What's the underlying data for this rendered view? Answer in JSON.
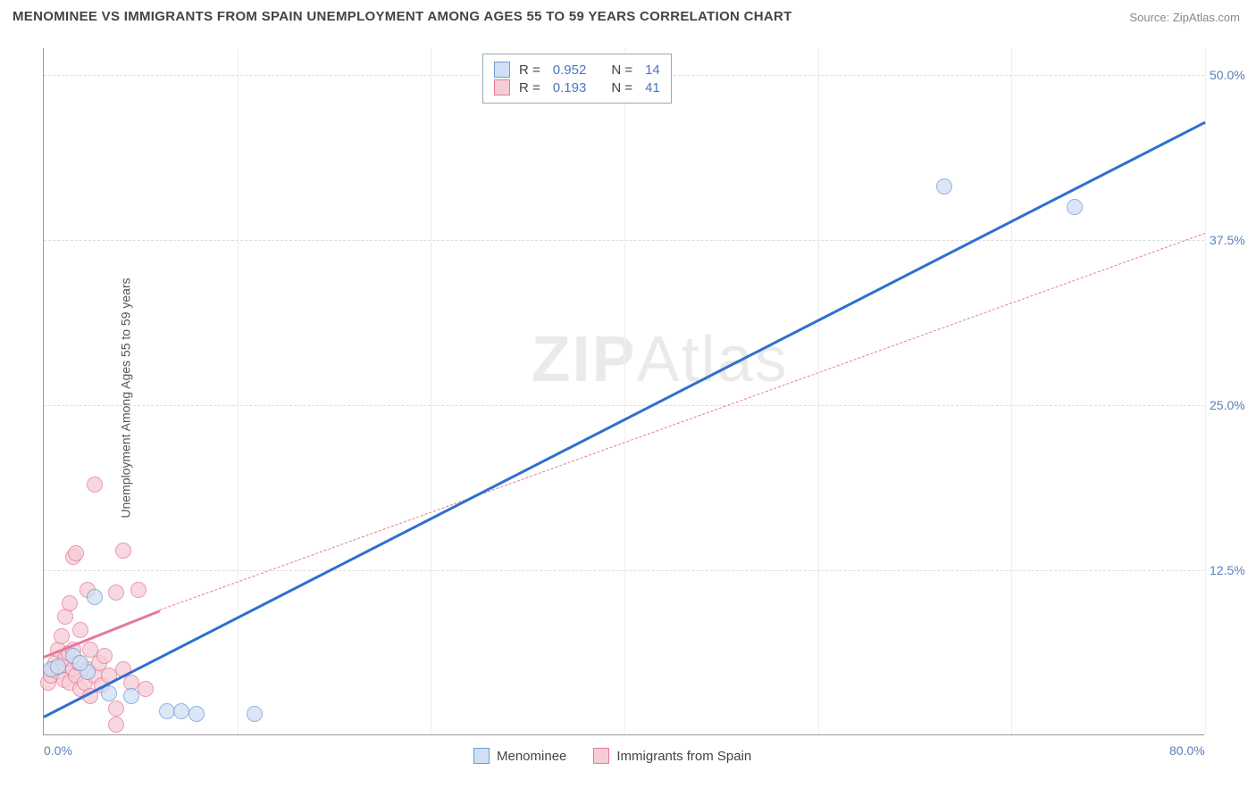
{
  "title": "MENOMINEE VS IMMIGRANTS FROM SPAIN UNEMPLOYMENT AMONG AGES 55 TO 59 YEARS CORRELATION CHART",
  "source_prefix": "Source: ",
  "source_name": "ZipAtlas.com",
  "ylabel": "Unemployment Among Ages 55 to 59 years",
  "watermark_a": "ZIP",
  "watermark_b": "Atlas",
  "chart": {
    "type": "scatter",
    "xlim": [
      0,
      80
    ],
    "ylim": [
      0,
      52
    ],
    "background_color": "#ffffff",
    "grid_color": "#dddddd",
    "x_ticks": [
      {
        "value": 0,
        "label": "0.0%"
      },
      {
        "value": 80,
        "label": "80.0%"
      }
    ],
    "x_gridlines": [
      13.33,
      26.67,
      40,
      53.33,
      66.67,
      80
    ],
    "y_ticks": [
      {
        "value": 12.5,
        "label": "12.5%"
      },
      {
        "value": 25.0,
        "label": "25.0%"
      },
      {
        "value": 37.5,
        "label": "37.5%"
      },
      {
        "value": 50.0,
        "label": "50.0%"
      }
    ],
    "series": [
      {
        "id": "menominee",
        "label": "Menominee",
        "marker_fill": "#cfe0f5",
        "marker_stroke": "#6f9bd8",
        "marker_radius": 9,
        "marker_opacity": 0.75,
        "trend_color": "#2f6fd0",
        "trend_width": 3,
        "trend_solid": {
          "x1": 0,
          "y1": 1.5,
          "x2": 80,
          "y2": 46.5
        },
        "points": [
          {
            "x": 0.5,
            "y": 5.0
          },
          {
            "x": 1.0,
            "y": 5.2
          },
          {
            "x": 2.0,
            "y": 6.0
          },
          {
            "x": 3.0,
            "y": 4.8
          },
          {
            "x": 3.5,
            "y": 10.5
          },
          {
            "x": 4.5,
            "y": 3.2
          },
          {
            "x": 6.0,
            "y": 3.0
          },
          {
            "x": 8.5,
            "y": 1.8
          },
          {
            "x": 9.5,
            "y": 1.8
          },
          {
            "x": 10.5,
            "y": 1.6
          },
          {
            "x": 14.5,
            "y": 1.6
          },
          {
            "x": 62.0,
            "y": 41.5
          },
          {
            "x": 71.0,
            "y": 40.0
          },
          {
            "x": 2.5,
            "y": 5.5
          }
        ]
      },
      {
        "id": "spain",
        "label": "Immigrants from Spain",
        "marker_fill": "#f6ccd6",
        "marker_stroke": "#e47a95",
        "marker_radius": 9,
        "marker_opacity": 0.75,
        "trend_color": "#e47a95",
        "trend_width": 3,
        "trend_solid": {
          "x1": 0,
          "y1": 6.0,
          "x2": 8,
          "y2": 9.5
        },
        "trend_dashed": {
          "x1": 8,
          "y1": 9.5,
          "x2": 80,
          "y2": 38.0
        },
        "points": [
          {
            "x": 0.3,
            "y": 4.0
          },
          {
            "x": 0.5,
            "y": 4.5
          },
          {
            "x": 0.6,
            "y": 5.0
          },
          {
            "x": 0.8,
            "y": 5.5
          },
          {
            "x": 1.0,
            "y": 4.8
          },
          {
            "x": 1.0,
            "y": 6.5
          },
          {
            "x": 1.2,
            "y": 5.3
          },
          {
            "x": 1.2,
            "y": 7.5
          },
          {
            "x": 1.4,
            "y": 4.2
          },
          {
            "x": 1.5,
            "y": 5.8
          },
          {
            "x": 1.5,
            "y": 9.0
          },
          {
            "x": 1.7,
            "y": 6.2
          },
          {
            "x": 1.8,
            "y": 4.0
          },
          {
            "x": 1.8,
            "y": 10.0
          },
          {
            "x": 2.0,
            "y": 5.0
          },
          {
            "x": 2.0,
            "y": 6.5
          },
          {
            "x": 2.0,
            "y": 13.5
          },
          {
            "x": 2.2,
            "y": 4.5
          },
          {
            "x": 2.2,
            "y": 13.8
          },
          {
            "x": 2.4,
            "y": 5.5
          },
          {
            "x": 2.5,
            "y": 3.5
          },
          {
            "x": 2.5,
            "y": 8.0
          },
          {
            "x": 2.8,
            "y": 4.0
          },
          {
            "x": 3.0,
            "y": 5.0
          },
          {
            "x": 3.0,
            "y": 11.0
          },
          {
            "x": 3.2,
            "y": 3.0
          },
          {
            "x": 3.2,
            "y": 6.5
          },
          {
            "x": 3.5,
            "y": 4.5
          },
          {
            "x": 3.5,
            "y": 19.0
          },
          {
            "x": 3.8,
            "y": 5.5
          },
          {
            "x": 4.0,
            "y": 3.8
          },
          {
            "x": 4.2,
            "y": 6.0
          },
          {
            "x": 4.5,
            "y": 4.5
          },
          {
            "x": 5.0,
            "y": 2.0
          },
          {
            "x": 5.0,
            "y": 10.8
          },
          {
            "x": 5.5,
            "y": 5.0
          },
          {
            "x": 5.5,
            "y": 14.0
          },
          {
            "x": 6.0,
            "y": 4.0
          },
          {
            "x": 6.5,
            "y": 11.0
          },
          {
            "x": 7.0,
            "y": 3.5
          },
          {
            "x": 5.0,
            "y": 0.8
          }
        ]
      }
    ],
    "stats_legend": {
      "rows": [
        {
          "swatch_fill": "#cfe0f5",
          "swatch_stroke": "#6f9bd8",
          "r": "0.952",
          "n": "14"
        },
        {
          "swatch_fill": "#f6ccd6",
          "swatch_stroke": "#e47a95",
          "r": "0.193",
          "n": "41"
        }
      ],
      "r_label": "R =",
      "n_label": "N ="
    },
    "series_legend": [
      {
        "swatch_fill": "#cfe0f5",
        "swatch_stroke": "#6f9bd8",
        "label": "Menominee"
      },
      {
        "swatch_fill": "#f6ccd6",
        "swatch_stroke": "#e47a95",
        "label": "Immigrants from Spain"
      }
    ]
  }
}
